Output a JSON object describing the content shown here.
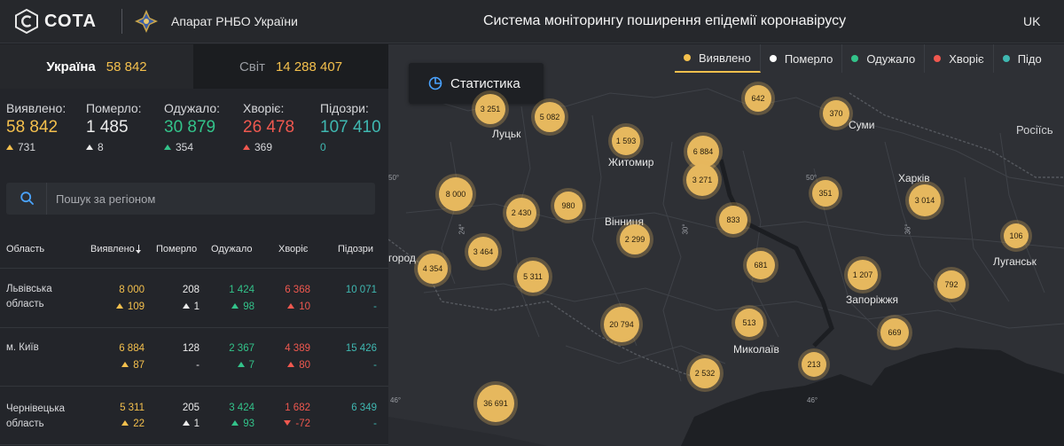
{
  "header": {
    "logo_text": "СОТА",
    "org_name": "Апарат РНБО України",
    "system_title": "Система моніторингу поширення епідемії коронавірусу",
    "lang": "UK"
  },
  "scope_tabs": {
    "ukraine": {
      "label": "Україна",
      "value": "58 842"
    },
    "world": {
      "label": "Світ",
      "value": "14 288 407"
    }
  },
  "summary": [
    {
      "label": "Виявлено:",
      "value": "58 842",
      "delta": "731",
      "color": "#f4c04d"
    },
    {
      "label": "Померло:",
      "value": "1 485",
      "delta": "8",
      "color": "#ececec"
    },
    {
      "label": "Одужало:",
      "value": "30 879",
      "delta": "354",
      "color": "#33c38a"
    },
    {
      "label": "Хворіє:",
      "value": "26 478",
      "delta": "369",
      "color": "#f0584f"
    },
    {
      "label": "Підозри:",
      "value": "107 410",
      "delta": "0",
      "color": "#3fb8b1"
    }
  ],
  "search": {
    "placeholder": "Пошук за регіоном"
  },
  "table": {
    "headers": {
      "region": "Область",
      "confirmed": "Виявлено",
      "deaths": "Померло",
      "recovered": "Одужало",
      "sick": "Хворіє",
      "suspected": "Підозри"
    },
    "rows": [
      {
        "region": "Львівська область",
        "confirmed": "8 000",
        "confirmed_delta": "109",
        "deaths": "208",
        "deaths_delta": "1",
        "recovered": "1 424",
        "recovered_delta": "98",
        "sick": "6 368",
        "sick_delta": "10",
        "suspected": "10 071",
        "suspected_delta": "-"
      },
      {
        "region": "м. Київ",
        "confirmed": "6 884",
        "confirmed_delta": "87",
        "deaths": "128",
        "deaths_delta": "-",
        "recovered": "2 367",
        "recovered_delta": "7",
        "sick": "4 389",
        "sick_delta": "80",
        "suspected": "15 426",
        "suspected_delta": "-"
      },
      {
        "region": "Чернівецька область",
        "confirmed": "5 311",
        "confirmed_delta": "22",
        "deaths": "205",
        "deaths_delta": "1",
        "recovered": "3 424",
        "recovered_delta": "93",
        "sick": "1 682",
        "sick_delta": "-72",
        "suspected": "6 349",
        "suspected_delta": "-"
      }
    ]
  },
  "map": {
    "stats_button": "Статистика",
    "legend": [
      {
        "label": "Виявлено",
        "color": "#f4c04d",
        "active": true
      },
      {
        "label": "Померло",
        "color": "#ffffff",
        "active": false
      },
      {
        "label": "Одужало",
        "color": "#33c38a",
        "active": false
      },
      {
        "label": "Хворіє",
        "color": "#f0584f",
        "active": false
      },
      {
        "label": "Підо",
        "color": "#3fb8b1",
        "active": false
      }
    ],
    "cities": [
      "Луцьк",
      "Житомир",
      "Суми",
      "Росіїсь",
      "Харків",
      "Вінниця",
      "Луганськ",
      "город",
      "Запоріжжя",
      "Миколаїв"
    ],
    "coords": [
      "50°",
      "24°",
      "30°",
      "50°",
      "36°",
      "46°",
      "46°"
    ],
    "bubbles": [
      "3 251",
      "5 082",
      "642",
      "370",
      "1 593",
      "6 884",
      "3 271",
      "8 000",
      "2 430",
      "980",
      "2 299",
      "833",
      "351",
      "3 014",
      "106",
      "4 354",
      "3 464",
      "5 311",
      "681",
      "1 207",
      "792",
      "20 794",
      "513",
      "669",
      "2 532",
      "213",
      "36 691"
    ]
  }
}
